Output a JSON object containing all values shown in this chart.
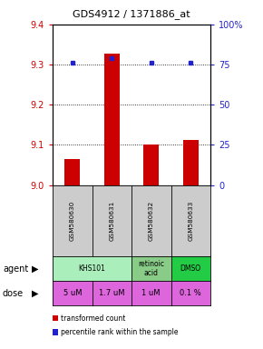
{
  "title": "GDS4912 / 1371886_at",
  "samples": [
    "GSM580630",
    "GSM580631",
    "GSM580632",
    "GSM580633"
  ],
  "bar_values": [
    9.065,
    9.328,
    9.101,
    9.112
  ],
  "percentile_values": [
    76,
    79,
    76,
    76
  ],
  "ylim_left": [
    9.0,
    9.4
  ],
  "ylim_right": [
    0,
    100
  ],
  "yticks_left": [
    9.0,
    9.1,
    9.2,
    9.3,
    9.4
  ],
  "yticks_right": [
    0,
    25,
    50,
    75,
    100
  ],
  "ytick_labels_right": [
    "0",
    "25",
    "50",
    "75",
    "100%"
  ],
  "bar_color": "#cc0000",
  "dot_color": "#2222cc",
  "agent_spans": [
    {
      "start": 0,
      "end": 1,
      "label": "KHS101",
      "color": "#aaeebb"
    },
    {
      "start": 2,
      "end": 2,
      "label": "retinoic\nacid",
      "color": "#88cc88"
    },
    {
      "start": 3,
      "end": 3,
      "label": "DMSO",
      "color": "#22cc44"
    }
  ],
  "dose_labels": [
    "5 uM",
    "1.7 uM",
    "1 uM",
    "0.1 %"
  ],
  "dose_color": "#dd66dd",
  "sample_bg": "#cccccc",
  "left_tick_color": "#cc0000",
  "right_tick_color": "#2222cc",
  "bar_width": 0.4
}
